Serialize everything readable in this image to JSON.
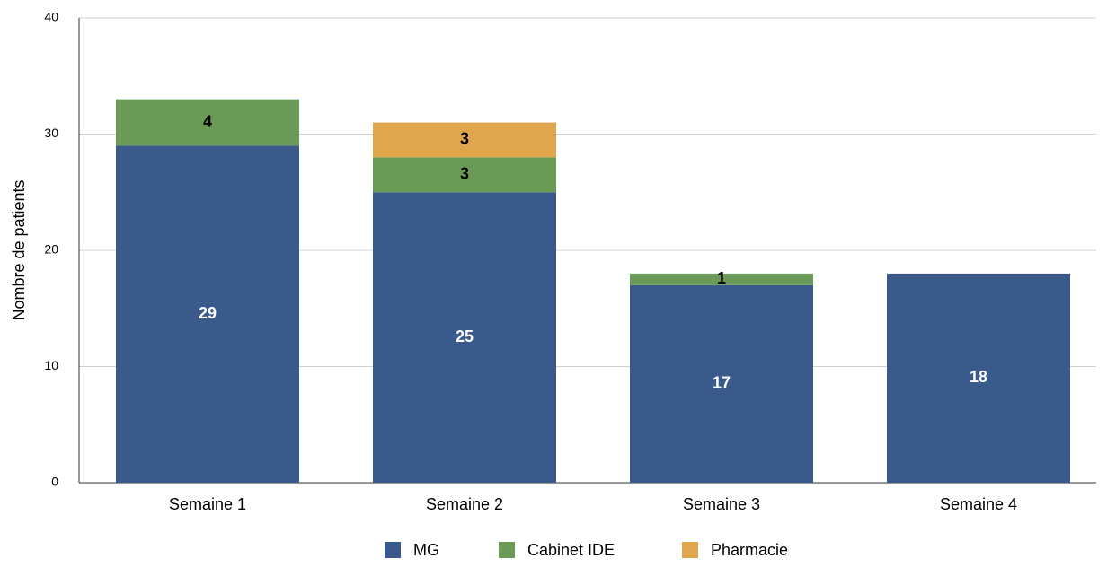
{
  "chart_data": {
    "type": "stacked_bar",
    "y_label": "Nombre de patients",
    "categories": [
      "Semaine 1",
      "Semaine 2",
      "Semaine 3",
      "Semaine 4"
    ],
    "series": [
      {
        "name": "MG",
        "color": "#3a5a8c",
        "values": [
          29,
          25,
          17,
          18
        ]
      },
      {
        "name": "Cabinet IDE",
        "color": "#6a9a55",
        "values": [
          4,
          3,
          1,
          null
        ]
      },
      {
        "name": "Pharmacie",
        "color": "#e0a64e",
        "values": [
          null,
          3,
          null,
          null
        ]
      }
    ],
    "ylim": [
      0,
      40
    ],
    "yticks": [
      0,
      10,
      20,
      30,
      40
    ],
    "grid": true,
    "legend": "bottom"
  }
}
